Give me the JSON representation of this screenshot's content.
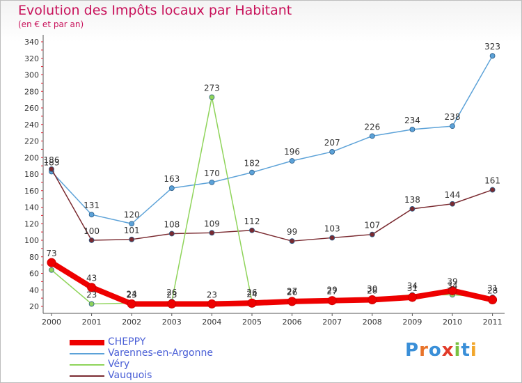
{
  "title": "Evolution des Impôts locaux par Habitant",
  "subtitle": "(en € et par an)",
  "logo": {
    "text": "Proxiti",
    "letters": [
      {
        "ch": "P",
        "color": "#3a8fd8"
      },
      {
        "ch": "r",
        "color": "#e8732a"
      },
      {
        "ch": "o",
        "color": "#3a8fd8"
      },
      {
        "ch": "x",
        "color": "#e23b2a"
      },
      {
        "ch": "i",
        "color": "#79c142"
      },
      {
        "ch": "t",
        "color": "#3a8fd8"
      },
      {
        "ch": "i",
        "color": "#f2a62a"
      }
    ]
  },
  "chart_data": {
    "type": "line",
    "title": "Evolution des Impôts locaux par Habitant",
    "subtitle": "(en € et par an)",
    "categories": [
      "2000",
      "2001",
      "2002",
      "2003",
      "2004",
      "2005",
      "2006",
      "2007",
      "2008",
      "2009",
      "2010",
      "2011"
    ],
    "ylim": [
      20,
      340
    ],
    "yticks": [
      20,
      40,
      60,
      80,
      100,
      120,
      140,
      160,
      180,
      200,
      220,
      240,
      260,
      280,
      300,
      320,
      340
    ],
    "grid": false,
    "legend_position": "bottom-left",
    "series": [
      {
        "name": "CHEPPY",
        "color": "#ee0000",
        "width": 8,
        "values": [
          73,
          43,
          23,
          23,
          23,
          24,
          26,
          27,
          28,
          31,
          39,
          28
        ],
        "labels": [
          "73",
          "43",
          "23",
          "23",
          "23",
          "24",
          "26",
          "27",
          "28",
          "31",
          "39",
          "28"
        ]
      },
      {
        "name": "Varennes-en-Argonne",
        "color": "#5ca2d8",
        "width": 1.5,
        "values": [
          183,
          131,
          120,
          163,
          170,
          182,
          196,
          207,
          226,
          234,
          238,
          323
        ],
        "labels": [
          "183",
          "131",
          "120",
          "163",
          "170",
          "182",
          "196",
          "207",
          "226",
          "234",
          "238",
          "323"
        ]
      },
      {
        "name": "Véry",
        "color": "#8fd45a",
        "width": 1.5,
        "values": [
          64,
          23,
          24,
          26,
          273,
          26,
          27,
          29,
          30,
          34,
          34,
          31
        ],
        "labels": [
          "",
          "23",
          "24",
          "26",
          "273",
          "26",
          "27",
          "29",
          "30",
          "34",
          "34",
          "31"
        ]
      },
      {
        "name": "Vauquois",
        "color": "#7a2a30",
        "width": 1.5,
        "values": [
          186,
          100,
          101,
          108,
          109,
          112,
          99,
          103,
          107,
          138,
          144,
          161
        ],
        "labels": [
          "186",
          "100",
          "101",
          "108",
          "109",
          "112",
          "99",
          "103",
          "107",
          "138",
          "144",
          "161"
        ]
      }
    ]
  }
}
